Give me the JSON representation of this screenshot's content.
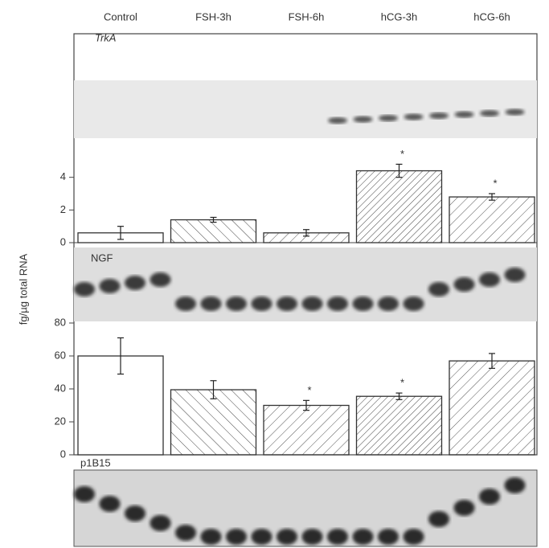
{
  "blot_labels": [
    "TrkA",
    "NGF",
    "p1B15"
  ],
  "y_axis_label": "fg/µg total RNA",
  "chart_data": [
    {
      "type": "bar",
      "categories": [
        "Control",
        "FSH-3h",
        "FSH-6h",
        "hCG-3h",
        "hCG-6h"
      ],
      "values": [
        0.6,
        1.4,
        0.6,
        4.4,
        2.8
      ],
      "errors": [
        0.4,
        0.15,
        0.2,
        0.4,
        0.2
      ],
      "fills": [
        "none",
        "hatch-back",
        "hatch",
        "hatch-dense",
        "hatch"
      ],
      "annotations": [
        {
          "category": "hCG-3h",
          "text": "*"
        },
        {
          "category": "hCG-6h",
          "text": "*"
        }
      ],
      "ylim": [
        0,
        6
      ],
      "yticks": [
        0,
        2,
        4
      ]
    },
    {
      "type": "bar",
      "categories": [
        "Control",
        "FSH-3h",
        "FSH-6h",
        "hCG-3h",
        "hCG-6h"
      ],
      "values": [
        60,
        39.5,
        30,
        35.5,
        57
      ],
      "errors": [
        11,
        5.5,
        3,
        2,
        4.5
      ],
      "fills": [
        "none",
        "hatch-back",
        "hatch",
        "hatch-dense",
        "hatch"
      ],
      "annotations": [
        {
          "category": "FSH-6h",
          "text": "*"
        },
        {
          "category": "hCG-3h",
          "text": "*"
        }
      ],
      "ylim": [
        0,
        80
      ],
      "yticks": [
        0,
        20,
        40,
        60,
        80
      ]
    }
  ]
}
